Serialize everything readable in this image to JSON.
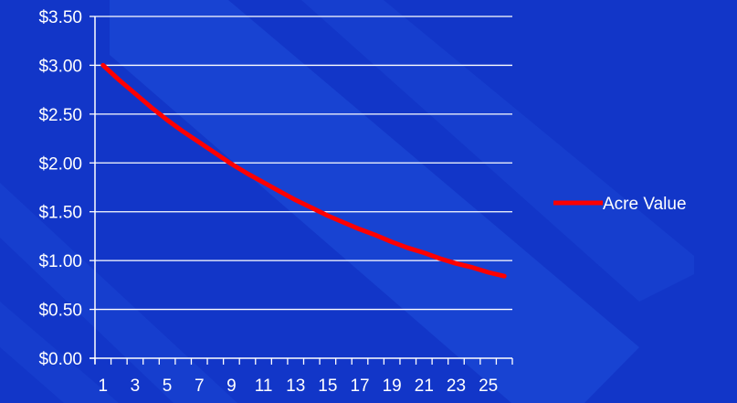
{
  "colors": {
    "background": "#1236c8",
    "gridline": "#ffffff",
    "axis": "#ffffff",
    "series_line": "#ff0000",
    "text": "#ffffff"
  },
  "chart_data": {
    "type": "line",
    "title": "",
    "xlabel": "",
    "ylabel": "",
    "x": [
      1,
      2,
      3,
      4,
      5,
      6,
      7,
      8,
      9,
      10,
      11,
      12,
      13,
      14,
      15,
      16,
      17,
      18,
      19,
      20,
      21,
      22,
      23,
      24,
      25,
      26
    ],
    "x_tick_labels": [
      "1",
      "3",
      "5",
      "7",
      "9",
      "11",
      "13",
      "15",
      "17",
      "19",
      "21",
      "23",
      "25"
    ],
    "y_tick_labels": [
      "$0.00",
      "$0.50",
      "$1.00",
      "$1.50",
      "$2.00",
      "$2.50",
      "$3.00",
      "$3.50"
    ],
    "ylim": [
      0,
      3.5
    ],
    "grid": true,
    "legend_position": "right",
    "series": [
      {
        "name": "Acre Value",
        "values": [
          3.0,
          2.85,
          2.71,
          2.57,
          2.44,
          2.32,
          2.21,
          2.1,
          1.99,
          1.89,
          1.8,
          1.71,
          1.62,
          1.54,
          1.46,
          1.39,
          1.32,
          1.26,
          1.19,
          1.13,
          1.08,
          1.02,
          0.97,
          0.93,
          0.88,
          0.84
        ]
      }
    ]
  }
}
